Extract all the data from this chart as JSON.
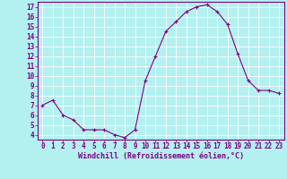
{
  "x": [
    0,
    1,
    2,
    3,
    4,
    5,
    6,
    7,
    8,
    9,
    10,
    11,
    12,
    13,
    14,
    15,
    16,
    17,
    18,
    19,
    20,
    21,
    22,
    23
  ],
  "y": [
    7.0,
    7.5,
    6.0,
    5.5,
    4.5,
    4.5,
    4.5,
    4.0,
    3.7,
    4.5,
    9.5,
    12.0,
    14.5,
    15.5,
    16.5,
    17.0,
    17.2,
    16.5,
    15.2,
    12.2,
    9.5,
    8.5,
    8.5,
    8.2
  ],
  "line_color": "#800080",
  "marker": "+",
  "marker_color": "#800080",
  "bg_color": "#b3f0f0",
  "grid_color": "#ffffff",
  "xlabel": "Windchill (Refroidissement éolien,°C)",
  "xlabel_color": "#800080",
  "tick_color": "#800080",
  "spine_color": "#800080",
  "ylim": [
    3.5,
    17.5
  ],
  "xlim": [
    -0.5,
    23.5
  ],
  "yticks": [
    4,
    5,
    6,
    7,
    8,
    9,
    10,
    11,
    12,
    13,
    14,
    15,
    16,
    17
  ],
  "xticks": [
    0,
    1,
    2,
    3,
    4,
    5,
    6,
    7,
    8,
    9,
    10,
    11,
    12,
    13,
    14,
    15,
    16,
    17,
    18,
    19,
    20,
    21,
    22,
    23
  ],
  "tick_fontsize": 5.5,
  "xlabel_fontsize": 6.0
}
